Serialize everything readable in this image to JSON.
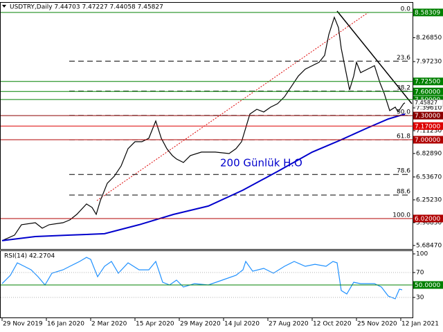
{
  "chart_data": [
    {
      "type": "line",
      "title": "USDTRY,Daily  7.44703 7.47227 7.44058 7.45827",
      "xlim": [
        0,
        296
      ],
      "ylim": [
        5.641,
        8.669
      ],
      "yticks": [
        {
          "value": 8.5599,
          "label": "8.55990"
        },
        {
          "value": 8.2685,
          "label": "8.26850"
        },
        {
          "value": 7.9723,
          "label": "7.97230"
        },
        {
          "value": 7.3961,
          "label": "7.39610"
        },
        {
          "value": 7.1123,
          "label": "7.11230"
        },
        {
          "value": 6.8289,
          "label": "6.82890"
        },
        {
          "value": 6.5367,
          "label": "6.53670"
        },
        {
          "value": 6.2523,
          "label": "6.25230"
        },
        {
          "value": 5.9685,
          "label": "5.96850"
        },
        {
          "value": 5.6847,
          "label": "5.68470"
        }
      ],
      "series": [
        {
          "color": "#000000",
          "x": [
            0,
            9,
            14,
            24,
            29,
            34,
            44,
            49,
            54,
            61,
            65,
            68,
            71,
            76,
            81,
            86,
            91,
            96,
            101,
            106,
            111,
            115,
            119,
            123,
            126,
            131,
            136,
            144,
            154,
            164,
            169,
            173,
            176,
            179,
            184,
            189,
            194,
            199,
            204,
            209,
            214,
            219,
            224,
            229,
            233,
            236,
            240,
            243,
            245,
            248,
            251,
            254,
            256,
            259,
            264,
            269,
            273,
            276,
            280,
            284,
            286,
            290,
            291
          ],
          "values": [
            5.745,
            5.814,
            5.943,
            5.968,
            5.9,
            5.943,
            5.968,
            6.003,
            6.072,
            6.201,
            6.158,
            6.072,
            6.244,
            6.459,
            6.545,
            6.674,
            6.889,
            6.975,
            6.975,
            7.018,
            7.233,
            7.018,
            6.889,
            6.803,
            6.76,
            6.717,
            6.803,
            6.846,
            6.846,
            6.828,
            6.889,
            6.975,
            7.147,
            7.319,
            7.379,
            7.345,
            7.405,
            7.448,
            7.534,
            7.663,
            7.792,
            7.878,
            7.921,
            7.964,
            8.05,
            8.308,
            8.523,
            8.394,
            8.136,
            7.878,
            7.62,
            7.792,
            7.964,
            7.835,
            7.878,
            7.921,
            7.706,
            7.577,
            7.362,
            7.405,
            7.345,
            7.448,
            7.45827
          ]
        },
        {
          "name": "200 Günlük H.O",
          "color": "#0000cc",
          "x": [
            0,
            24,
            49,
            74,
            99,
            124,
            149,
            174,
            199,
            224,
            244,
            264,
            279,
            291
          ],
          "values": [
            5.745,
            5.796,
            5.814,
            5.831,
            5.943,
            6.072,
            6.175,
            6.373,
            6.605,
            6.846,
            6.992,
            7.147,
            7.258,
            7.319
          ]
        }
      ],
      "levels": [
        {
          "value": 8.58309,
          "color": "#008000"
        },
        {
          "value": 7.725,
          "label": "7.72500",
          "color": "#008000"
        },
        {
          "value": 7.6,
          "label": "7.60000",
          "color": "#008000"
        },
        {
          "value": 7.5,
          "label": "7.50000",
          "color": "#008000"
        },
        {
          "value": 7.3,
          "label": "7.30000",
          "color": "#8b0000"
        },
        {
          "value": 7.17,
          "label": "7.17000",
          "color": "#dd0000"
        },
        {
          "value": 7.0,
          "label": "7.00000",
          "color": "#b00000"
        },
        {
          "value": 6.02,
          "label": "6.02000",
          "color": "#b00000"
        }
      ],
      "fibonacci": [
        {
          "level": "0.0",
          "price": 8.583
        },
        {
          "level": "23.6",
          "price": 7.978
        },
        {
          "level": "38.2",
          "price": 7.604
        },
        {
          "level": "50.0",
          "price": 7.302
        },
        {
          "level": "61.8",
          "price": 6.999
        },
        {
          "level": "78.6",
          "price": 6.568
        },
        {
          "level": "88.6",
          "price": 6.312
        },
        {
          "level": "100.0",
          "price": 6.02
        }
      ]
    },
    {
      "type": "line",
      "title": "RSI(14) 42.2704",
      "xlim": [
        0,
        296
      ],
      "ylim": [
        -3.3,
        105.6
      ],
      "yticks": [
        100,
        70,
        30
      ],
      "xticks": [
        {
          "value": 0,
          "label": "29 Nov 2019"
        },
        {
          "value": 32,
          "label": "16 Jan 2020"
        },
        {
          "value": 64,
          "label": "2 Mar 2020"
        },
        {
          "value": 96,
          "label": "15 Apr 2020"
        },
        {
          "value": 128,
          "label": "29 May 2020"
        },
        {
          "value": 160,
          "label": "14 Jul 2020"
        },
        {
          "value": 192,
          "label": "27 Aug 2020"
        },
        {
          "value": 224,
          "label": "12 Oct 2020"
        },
        {
          "value": 256,
          "label": "25 Nov 2020"
        },
        {
          "value": 288,
          "label": "12 Jan 2021"
        }
      ],
      "series": [
        {
          "color": "#1e90ff",
          "x": [
            0,
            6,
            11,
            16,
            21,
            26,
            31,
            36,
            44,
            49,
            56,
            61,
            64,
            69,
            74,
            79,
            84,
            91,
            99,
            106,
            111,
            116,
            121,
            126,
            131,
            139,
            149,
            159,
            169,
            174,
            176,
            181,
            189,
            196,
            204,
            211,
            219,
            226,
            234,
            239,
            242,
            245,
            249,
            254,
            259,
            269,
            274,
            279,
            284,
            287,
            289
          ],
          "values": [
            52.2,
            65.6,
            85.6,
            80,
            74.4,
            63.3,
            50,
            68.9,
            74.4,
            80,
            87.8,
            94.4,
            91.1,
            63.3,
            80,
            87.8,
            68.9,
            85.6,
            74.4,
            74.4,
            87.8,
            54.4,
            50,
            57.8,
            46.7,
            52.2,
            50,
            57.8,
            65.6,
            74.4,
            87.8,
            72.2,
            76.7,
            68.9,
            80,
            87.8,
            80,
            83.3,
            80,
            87.8,
            85.6,
            41.1,
            35.6,
            54.4,
            52.2,
            52.2,
            46.7,
            32.2,
            27.8,
            43.3,
            42.2704
          ]
        }
      ],
      "levels": [
        {
          "value": 70,
          "color": "#b0b0b0",
          "style": "dotted"
        },
        {
          "value": 30,
          "color": "#b0b0b0",
          "style": "dotted"
        },
        {
          "value": 50,
          "label": "50.0000",
          "color": "#008000"
        }
      ]
    }
  ]
}
